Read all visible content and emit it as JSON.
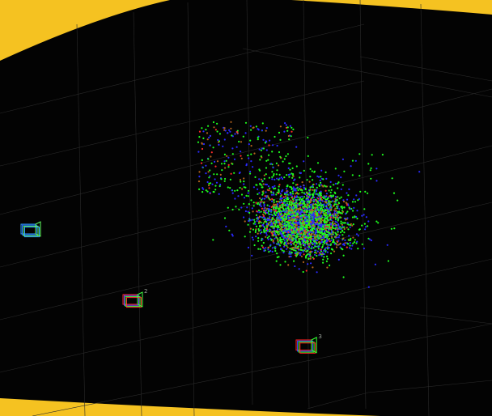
{
  "viewer": {
    "frame_color": "#f5c221",
    "background_color": "#030303",
    "grid_color": "#2a2a2a",
    "grid_visible": true
  },
  "point_cloud": {
    "colors": [
      "#1eff1e",
      "#2a2aff",
      "#b4641e",
      "#ff2a2a"
    ],
    "mix": [
      0.42,
      0.33,
      0.19,
      0.06
    ]
  },
  "cameras": [
    {
      "id": "camera-1",
      "label": "",
      "colors": [
        "#30a0ff",
        "#2060ff",
        "#60ff60"
      ]
    },
    {
      "id": "camera-2",
      "label": "2",
      "colors": [
        "#ff3030",
        "#8030ff",
        "#40ff40"
      ]
    },
    {
      "id": "camera-3",
      "label": "3",
      "colors": [
        "#ff2020",
        "#4040ff",
        "#30ff30"
      ]
    }
  ]
}
